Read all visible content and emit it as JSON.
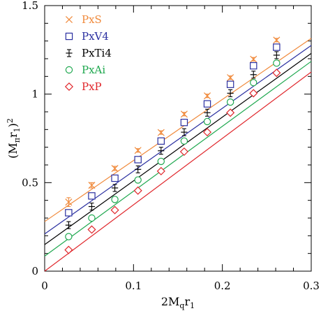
{
  "chart_data": {
    "type": "scatter",
    "xlabel": "2Mqr1",
    "ylabel": "(Mπr1)²",
    "xlim": [
      0,
      0.3
    ],
    "ylim": [
      0,
      1.5
    ],
    "xticks": [
      {
        "value": 0,
        "label": "0"
      },
      {
        "value": 0.1,
        "label": "0.1"
      },
      {
        "value": 0.2,
        "label": "0.2"
      },
      {
        "value": 0.3,
        "label": "0.3"
      }
    ],
    "yticks": [
      {
        "value": 0,
        "label": "0"
      },
      {
        "value": 0.5,
        "label": "0.5"
      },
      {
        "value": 1,
        "label": "1"
      },
      {
        "value": 1.5,
        "label": "1.5"
      }
    ],
    "grid": false,
    "legend_position": "top-left",
    "x": [
      0.027,
      0.053,
      0.079,
      0.105,
      0.131,
      0.157,
      0.183,
      0.209,
      0.235,
      0.261
    ],
    "series": [
      {
        "name": "PxS",
        "marker": "cross",
        "color": "#f08a3c",
        "values": [
          0.39,
          0.485,
          0.58,
          0.682,
          0.783,
          0.887,
          0.99,
          1.093,
          1.197,
          1.305
        ],
        "errors": [
          0.025,
          0.015,
          0.012,
          0.01,
          0.01,
          0.01,
          0.01,
          0.01,
          0.01,
          0.01
        ],
        "fit": [
          0.28,
          0.3,
          1.315
        ]
      },
      {
        "name": "PxV4",
        "marker": "square",
        "color": "#2a2fa0",
        "values": [
          0.33,
          0.425,
          0.525,
          0.63,
          0.735,
          0.84,
          0.945,
          1.055,
          1.16,
          1.265
        ],
        "errors": [
          0.012,
          0.01,
          0.008,
          0.008,
          0.008,
          0.008,
          0.008,
          0.008,
          0.008,
          0.008
        ],
        "fit": [
          0.21,
          0.3,
          1.275
        ]
      },
      {
        "name": "PxTi4",
        "marker": "errorbar-plus",
        "color": "#000000",
        "values": [
          0.26,
          0.365,
          0.47,
          0.575,
          0.68,
          0.785,
          0.895,
          1.005,
          1.11,
          1.22
        ],
        "errors": [
          0.015,
          0.015,
          0.014,
          0.014,
          0.014,
          0.014,
          0.014,
          0.014,
          0.014,
          0.014
        ],
        "fit": [
          0.15,
          0.3,
          1.23
        ]
      },
      {
        "name": "PxAi",
        "marker": "circle",
        "color": "#1fa84f",
        "values": [
          0.195,
          0.3,
          0.405,
          0.515,
          0.62,
          0.735,
          0.845,
          0.955,
          1.065,
          1.175
        ],
        "errors": [
          0.008,
          0.008,
          0.008,
          0.008,
          0.008,
          0.008,
          0.008,
          0.008,
          0.008,
          0.008
        ],
        "fit": [
          0.085,
          0.3,
          1.185
        ]
      },
      {
        "name": "PxP",
        "marker": "diamond",
        "color": "#e0262b",
        "values": [
          0.12,
          0.235,
          0.345,
          0.455,
          0.565,
          0.675,
          0.785,
          0.895,
          1.005,
          1.12
        ],
        "errors": [
          0.006,
          0.006,
          0.006,
          0.006,
          0.006,
          0.006,
          0.006,
          0.006,
          0.006,
          0.006
        ],
        "fit": [
          0.0,
          0.3,
          1.125
        ]
      }
    ]
  }
}
